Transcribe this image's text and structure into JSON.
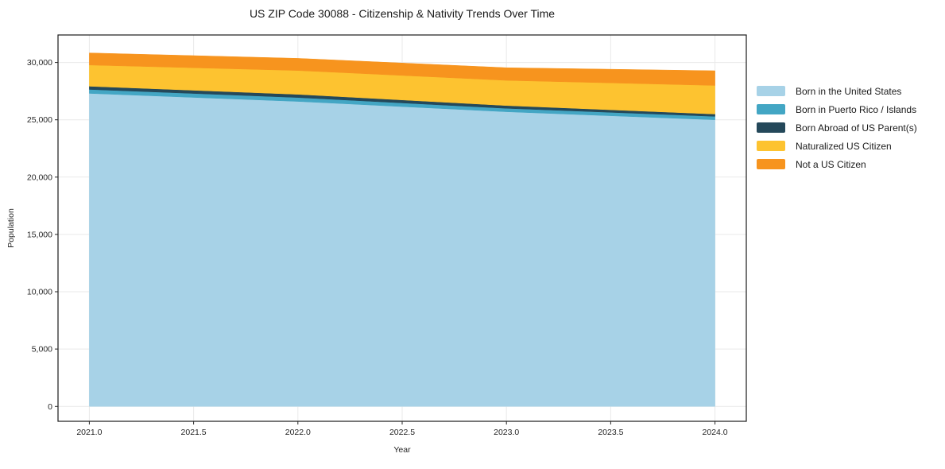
{
  "chart_data": {
    "type": "area",
    "stacked": true,
    "title": "US ZIP Code 30088 - Citizenship & Nativity Trends Over Time",
    "xlabel": "Year",
    "ylabel": "Population",
    "x": [
      2021,
      2022,
      2023,
      2024
    ],
    "series": [
      {
        "name": "Born in the United States",
        "color": "#a7d2e7",
        "values": [
          27300,
          26600,
          25700,
          25000
        ]
      },
      {
        "name": "Born in Puerto Rico / Islands",
        "color": "#43a6c4",
        "values": [
          350,
          340,
          300,
          300
        ]
      },
      {
        "name": "Born Abroad of US Parent(s)",
        "color": "#24485a",
        "values": [
          280,
          280,
          240,
          200
        ]
      },
      {
        "name": "Naturalized US Citizen",
        "color": "#fdc330",
        "values": [
          1850,
          2080,
          2200,
          2500
        ]
      },
      {
        "name": "Not a US Citizen",
        "color": "#f7941e",
        "values": [
          1050,
          1060,
          1100,
          1280
        ]
      }
    ],
    "x_ticks": [
      2021.0,
      2021.5,
      2022.0,
      2022.5,
      2023.0,
      2023.5,
      2024.0
    ],
    "y_ticks": [
      0,
      5000,
      10000,
      15000,
      20000,
      25000,
      30000
    ],
    "xlim": [
      2020.85,
      2024.15
    ],
    "ylim": [
      -1300,
      32400
    ],
    "grid": true,
    "legend_position": "right-outside",
    "colors": {
      "grid": "#e9e9e9",
      "frame": "#1a1a1a",
      "tick_text": "#262626"
    }
  }
}
